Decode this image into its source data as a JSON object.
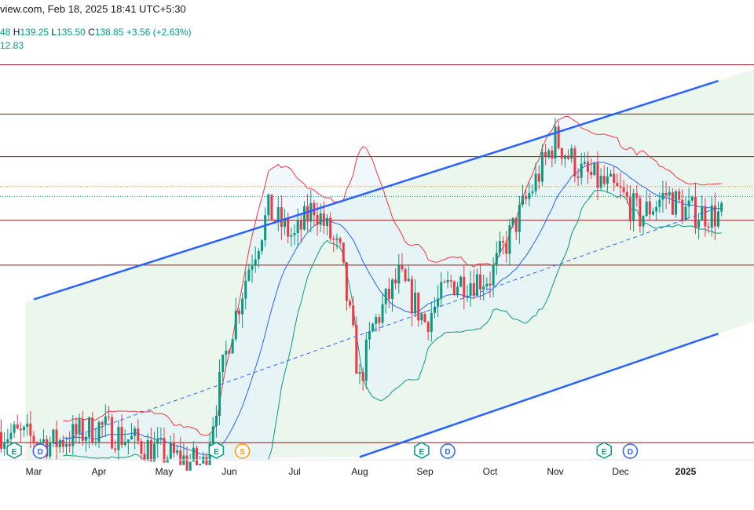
{
  "header": {
    "source_line": "view.com, Feb 18, 2025 18:41 UTC+5:30",
    "ohlc_clip": "48",
    "h_label": "H",
    "h_value": "139.25",
    "l_label": "L",
    "l_value": "135.50",
    "c_label": "C",
    "c_value": "138.85",
    "change": "+3.56 (+2.63%)",
    "indicator_value": "12.83"
  },
  "colors": {
    "up": "#089981",
    "down": "#f23645",
    "channel": "#2962ff",
    "bb_basis": "#2962ff",
    "bb_upper": "#f23645",
    "bb_lower": "#089981",
    "level": "#8b1a1a",
    "channel_fill": "#e8f5e9",
    "bb_fill": "#e3f2fd"
  },
  "chart_data": {
    "type": "candlestick",
    "x_ticks": [
      "Mar",
      "Apr",
      "May",
      "Jun",
      "Jul",
      "Aug",
      "Sep",
      "Oct",
      "Nov",
      "Dec",
      "2025"
    ],
    "y_range": [
      100,
      180
    ],
    "horizontal_levels": [
      171.4,
      162.5,
      154.8,
      143.3,
      135.2,
      103.1
    ],
    "dotted_levels": [
      {
        "value": 149.4,
        "color": "#f57c00"
      },
      {
        "value": 147.6,
        "color": "#089981"
      }
    ],
    "channel": {
      "upper": [
        {
          "x": 0.0,
          "y": 129.0
        },
        {
          "x": 10.5,
          "y": 168.5
        }
      ],
      "lower": [
        {
          "x": 5.0,
          "y": 100.5
        },
        {
          "x": 10.5,
          "y": 122.8
        }
      ],
      "middle": [
        {
          "x": 0.0,
          "y": 101.6
        },
        {
          "x": 10.5,
          "y": 145.6
        }
      ]
    },
    "events": [
      {
        "x": -0.3,
        "type": "E"
      },
      {
        "x": 0.1,
        "type": "D"
      },
      {
        "x": 2.8,
        "type": "E"
      },
      {
        "x": 3.2,
        "type": "S"
      },
      {
        "x": 5.95,
        "type": "E"
      },
      {
        "x": 6.35,
        "type": "D"
      },
      {
        "x": 8.75,
        "type": "E"
      },
      {
        "x": 9.15,
        "type": "D"
      }
    ]
  }
}
